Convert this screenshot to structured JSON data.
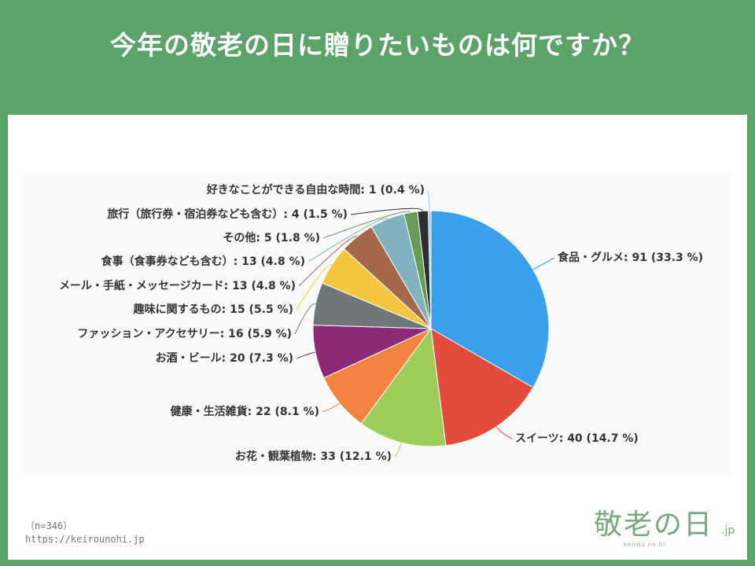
{
  "title": "今年の敬老の日に贈りたいものは何ですか？",
  "sample_note": "（n=346）",
  "source_url": "https://keirounohi.jp",
  "logo": {
    "text": "敬老の日",
    "suffix": ".jp",
    "sub": "keirou no hi"
  },
  "chart_data": {
    "type": "pie",
    "start": "12 o'clock, clockwise",
    "slices": [
      {
        "label": "食品・グルメ: 91 (33.3 %)",
        "value": 91,
        "percent": 33.3,
        "color": "#3aa0eb"
      },
      {
        "label": "スイーツ: 40 (14.7 %)",
        "value": 40,
        "percent": 14.7,
        "color": "#e34b3c"
      },
      {
        "label": "お花・観葉植物: 33 (12.1 %)",
        "value": 33,
        "percent": 12.1,
        "color": "#9dcc5a"
      },
      {
        "label": "健康・生活雑貨: 22 (8.1 %)",
        "value": 22,
        "percent": 8.1,
        "color": "#f2843f"
      },
      {
        "label": "お酒・ビール: 20 (7.3 %)",
        "value": 20,
        "percent": 7.3,
        "color": "#8c2a77"
      },
      {
        "label": "ファッション・アクセサリー: 16 (5.9 %)",
        "value": 16,
        "percent": 5.9,
        "color": "#6f7778"
      },
      {
        "label": "趣味に関するもの: 15 (5.5 %)",
        "value": 15,
        "percent": 5.5,
        "color": "#f3c640"
      },
      {
        "label": "メール・手紙・メッセージカード: 13 (4.8 %)",
        "value": 13,
        "percent": 4.8,
        "color": "#a4684a"
      },
      {
        "label": "食事（食事券なども含む）: 13 (4.8 %)",
        "value": 13,
        "percent": 4.8,
        "color": "#7fb3c0"
      },
      {
        "label": "その他: 5 (1.8 %)",
        "value": 5,
        "percent": 1.8,
        "color": "#6a9a59"
      },
      {
        "label": "旅行（旅行券・宿泊券なども含む）: 4 (1.5 %)",
        "value": 4,
        "percent": 1.5,
        "color": "#2e2f33"
      },
      {
        "label": "好きなことができる自由な時間: 1 (0.4 %)",
        "value": 1,
        "percent": 0.4,
        "color": "#9ec7e6"
      }
    ]
  }
}
